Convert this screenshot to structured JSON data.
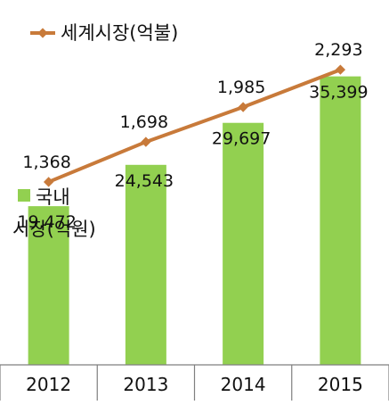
{
  "chart_data": {
    "type": "bar+line",
    "categories": [
      "2012",
      "2013",
      "2014",
      "2015"
    ],
    "bar_series": {
      "name": "국내\n시장(억원)",
      "name_lines": [
        "국내",
        "시장(억원)"
      ],
      "values": [
        19472,
        24543,
        29697,
        35399
      ],
      "labels": [
        "19,472",
        "24,543",
        "29,697",
        "35,399"
      ],
      "color": "#92d050",
      "ylim": [
        0,
        37000
      ]
    },
    "line_series": {
      "name": "세계시장(억불)",
      "values": [
        1368,
        1698,
        1985,
        2293
      ],
      "labels": [
        "1,368",
        "1,698",
        "1,985",
        "2,293"
      ],
      "color": "#c87a3a",
      "ylim": [
        500,
        2500
      ]
    },
    "legend": "top-left"
  }
}
